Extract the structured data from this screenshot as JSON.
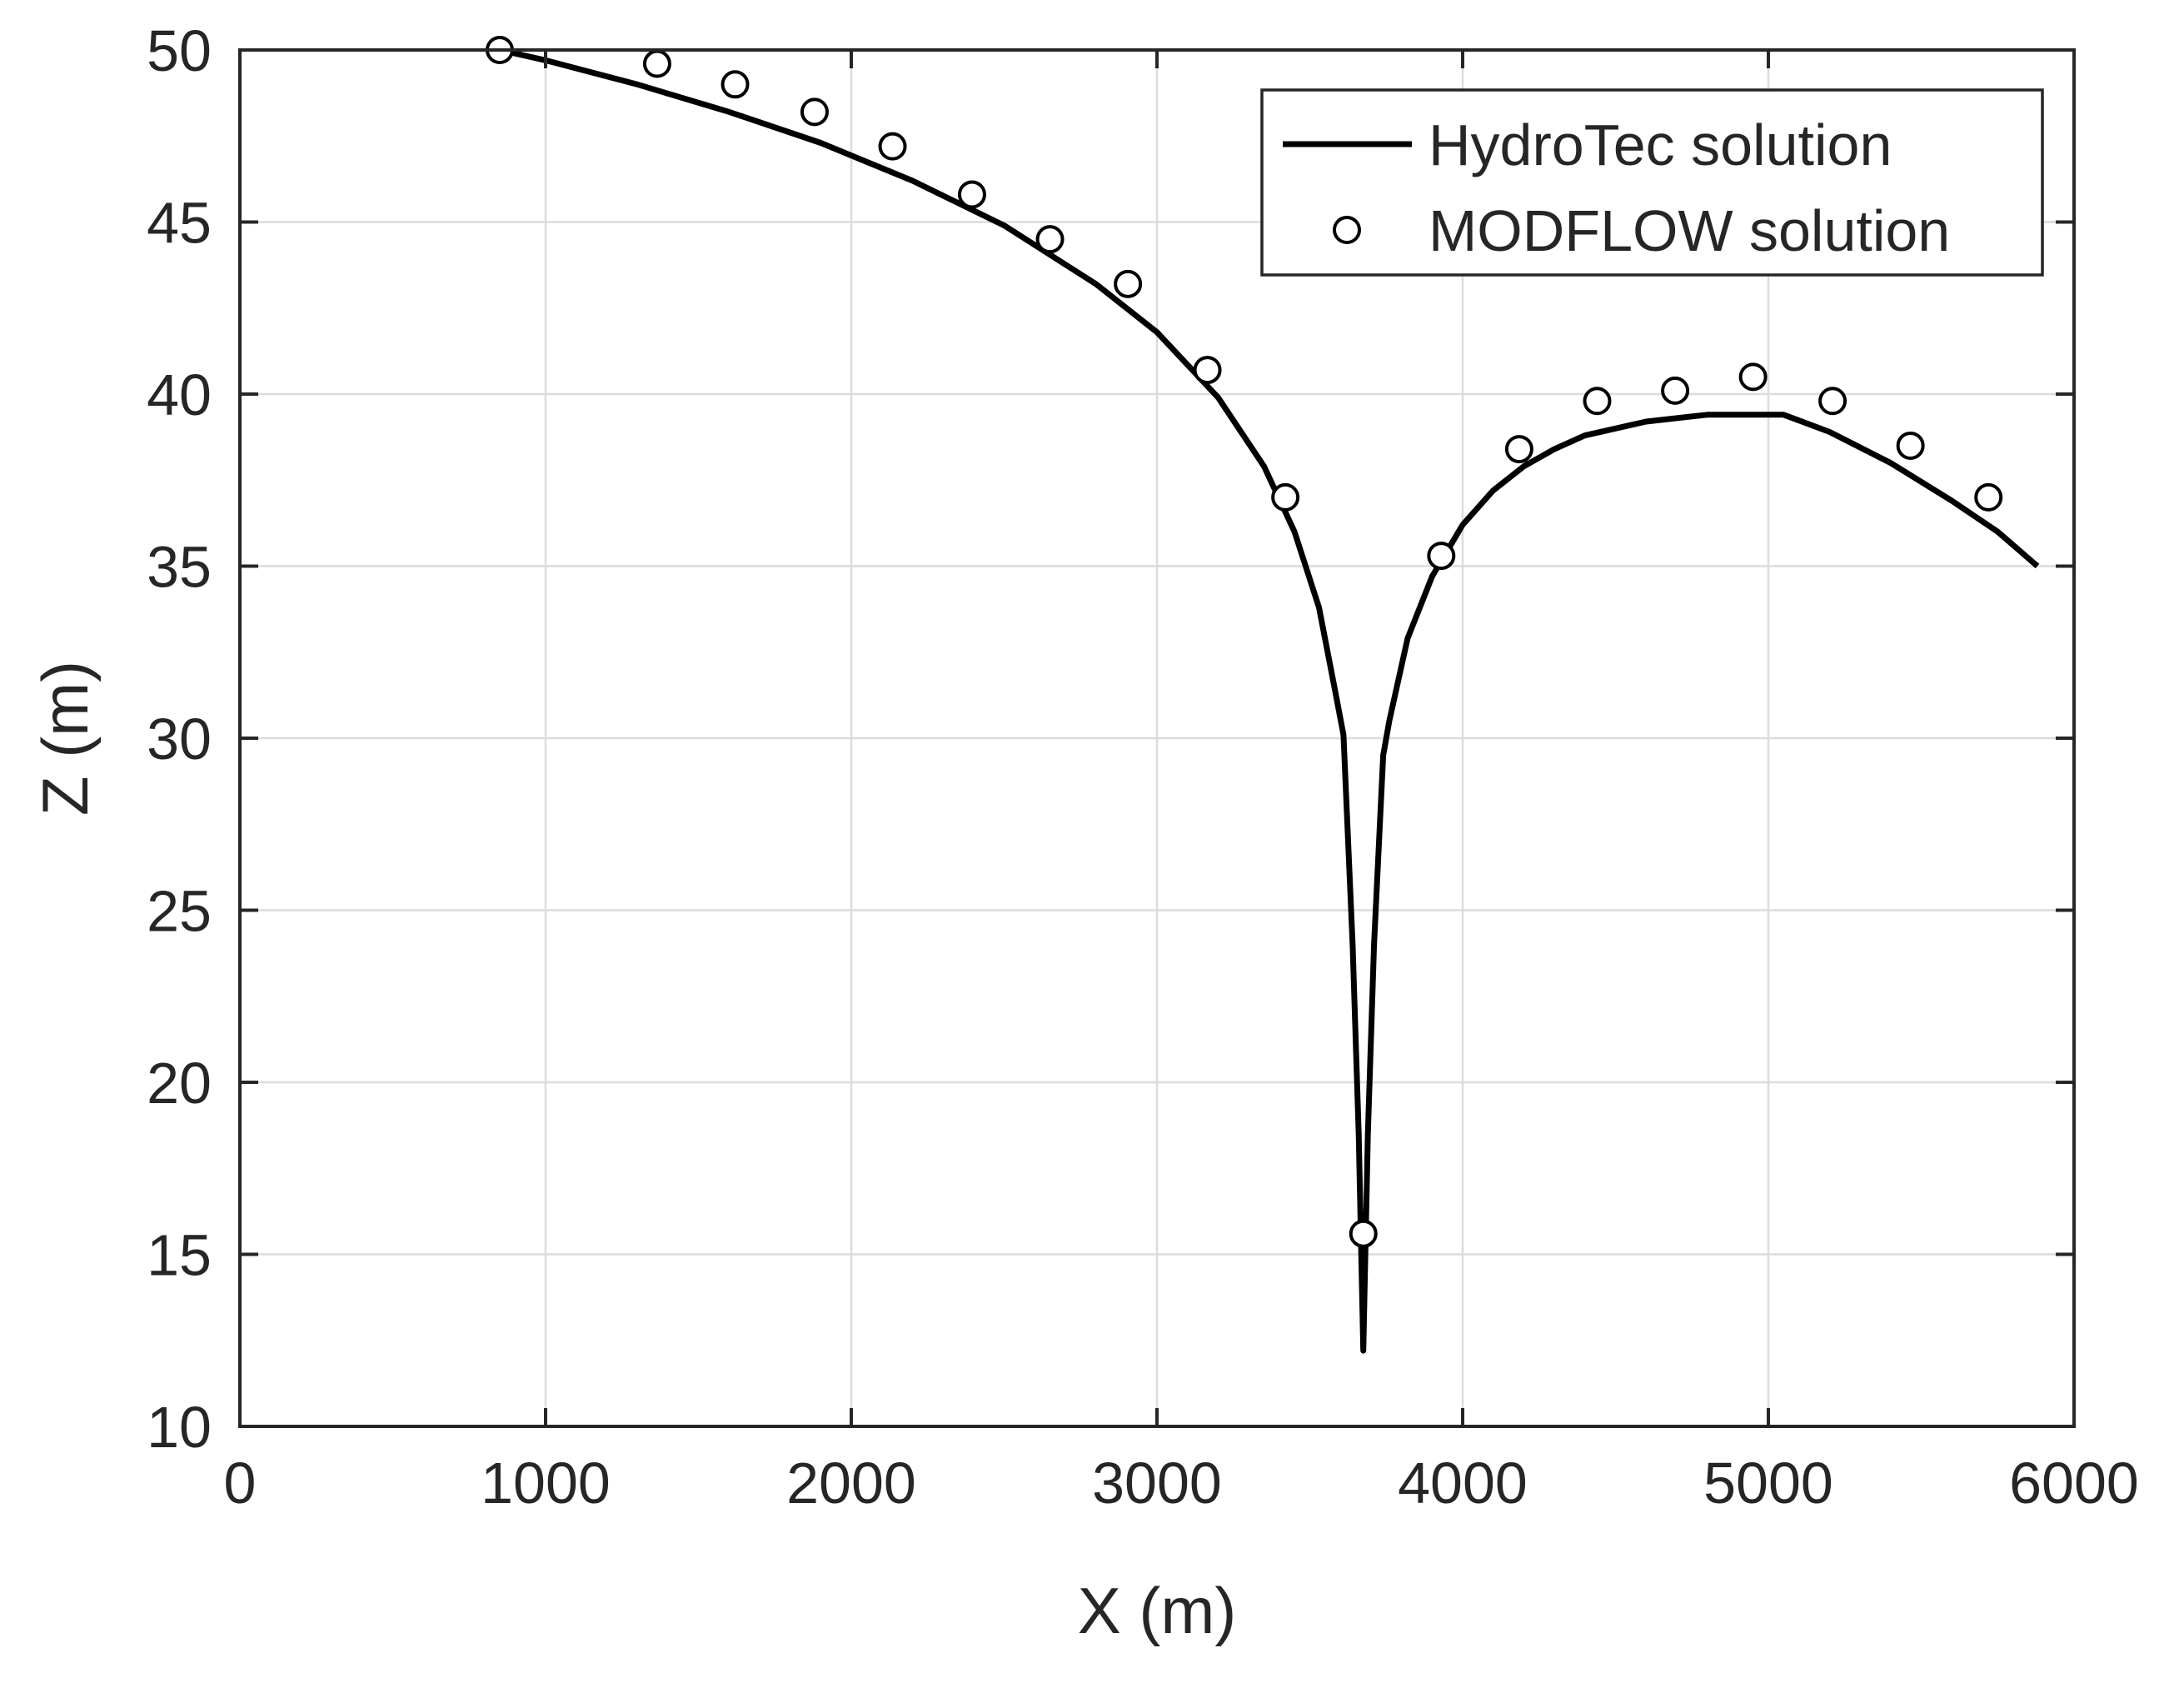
{
  "chart_data": {
    "type": "line",
    "xlabel": "X (m)",
    "ylabel": "Z (m)",
    "xlim": [
      0,
      6000
    ],
    "ylim": [
      10,
      50
    ],
    "xticks": [
      "0",
      "1000",
      "2000",
      "3000",
      "4000",
      "5000",
      "6000"
    ],
    "yticks": [
      "10",
      "15",
      "20",
      "25",
      "30",
      "35",
      "40",
      "45",
      "50"
    ],
    "grid": true,
    "legend_position": "top-right",
    "series": [
      {
        "name": "HydroTec solution",
        "style": "line",
        "color": "#000000",
        "x": [
          850,
          1000,
          1300,
          1600,
          1900,
          2200,
          2500,
          2800,
          3000,
          3200,
          3350,
          3450,
          3530,
          3580,
          3610,
          3640,
          3660,
          3675,
          3690,
          3710,
          3740,
          3760,
          3820,
          3900,
          4000,
          4100,
          4200,
          4300,
          4400,
          4600,
          4800,
          5000,
          5050,
          5200,
          5400,
          5600,
          5750,
          5880
        ],
        "y": [
          50,
          49.7,
          49.0,
          48.2,
          47.3,
          46.2,
          44.9,
          43.2,
          41.8,
          39.9,
          37.9,
          36.0,
          33.8,
          31.5,
          30.1,
          24.0,
          18.5,
          12.2,
          18.5,
          24.0,
          29.5,
          30.5,
          32.9,
          34.7,
          36.2,
          37.2,
          37.9,
          38.4,
          38.8,
          39.2,
          39.4,
          39.4,
          39.4,
          38.9,
          38.0,
          36.9,
          36.0,
          35.0
        ]
      },
      {
        "name": "MODFLOW solution",
        "style": "markers",
        "color": "#000000",
        "x": [
          850,
          1365,
          1620,
          1880,
          2135,
          2395,
          2650,
          2905,
          3165,
          3420,
          3675,
          3930,
          4185,
          4440,
          4695,
          4950,
          5210,
          5465,
          5720
        ],
        "y": [
          50.0,
          49.6,
          49.0,
          48.2,
          47.2,
          45.8,
          44.5,
          43.2,
          40.7,
          37.0,
          15.6,
          35.3,
          38.4,
          39.8,
          40.1,
          40.5,
          39.8,
          38.5,
          37.0
        ]
      }
    ]
  }
}
